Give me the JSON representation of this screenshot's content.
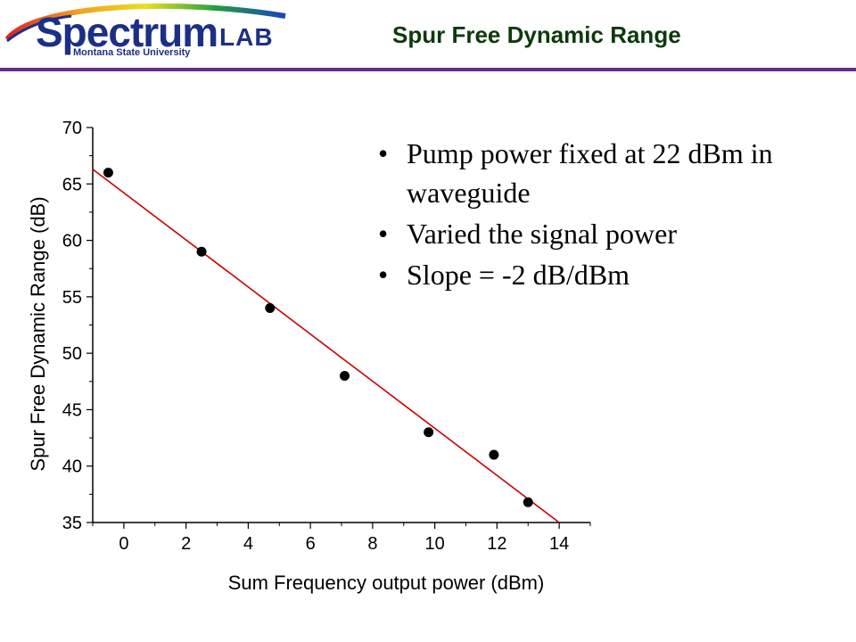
{
  "header": {
    "logo_main": "Spectrum",
    "logo_lab": "LAB",
    "logo_sub": "Montana State University",
    "title": "Spur Free Dynamic Range",
    "rule_color": "#6b2b8c",
    "title_color": "#0b3a0b"
  },
  "bullets": [
    "Pump power fixed at 22 dBm in waveguide",
    "Varied the signal power",
    "Slope = -2 dB/dBm"
  ],
  "chart_data": {
    "type": "scatter",
    "title": "",
    "xlabel": "Sum Frequency output power (dBm)",
    "ylabel": "Spur Free Dynamic Range (dB)",
    "xlim": [
      -1,
      15
    ],
    "ylim": [
      35,
      70
    ],
    "xticks": [
      0,
      2,
      4,
      6,
      8,
      10,
      12,
      14
    ],
    "yticks": [
      35,
      40,
      45,
      50,
      55,
      60,
      65,
      70
    ],
    "grid": false,
    "series": [
      {
        "x": [
          -0.5,
          2.5,
          4.7,
          7.1,
          9.8,
          11.9,
          13.0
        ],
        "y": [
          66,
          59,
          54,
          48,
          43,
          41,
          36.8
        ],
        "marker_color": "#000000"
      }
    ],
    "fit_line": {
      "color": "#cc0000",
      "x": [
        -1,
        14
      ],
      "y": [
        66.3,
        35
      ]
    }
  }
}
